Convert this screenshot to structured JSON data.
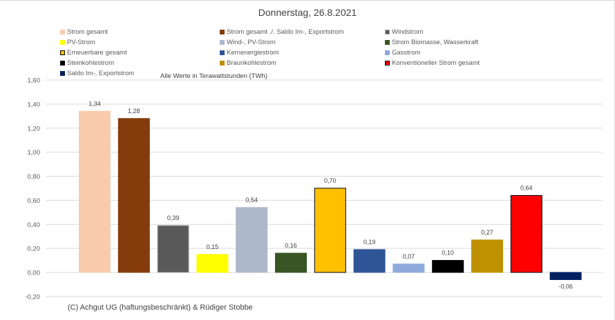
{
  "chart_data": {
    "type": "bar",
    "title": "Donnerstag, 26.8.2021",
    "subtitle": "Alle Werte in Terawattstunden (TWh)",
    "footer": "(C) Achgut UG (haftungsbeschränkt) & Rüdiger Stobbe",
    "ylim": [
      -0.2,
      1.6
    ],
    "yticks": [
      "1,60",
      "1,40",
      "1,20",
      "1,00",
      "0,80",
      "0,60",
      "0,40",
      "0,20",
      "0,00",
      "-0,20"
    ],
    "ytick_values": [
      1.6,
      1.4,
      1.2,
      1.0,
      0.8,
      0.6,
      0.4,
      0.2,
      0.0,
      -0.2
    ],
    "grid": true,
    "legend_position": "top",
    "series": [
      {
        "name": "Strom gesamt",
        "value": 1.34,
        "label": "1,34",
        "color": "#f8cbad",
        "border": "#f8cbad"
      },
      {
        "name": "Strom gesamt ./. Saldo Im-, Exportstrom",
        "value": 1.28,
        "label": "1,28",
        "color": "#843c0c",
        "border": "#843c0c"
      },
      {
        "name": "Windstrom",
        "value": 0.39,
        "label": "0,39",
        "color": "#595959",
        "border": "#a6a6a6"
      },
      {
        "name": "PV-Strom",
        "value": 0.15,
        "label": "0,15",
        "color": "#ffff00",
        "border": "#ffff00"
      },
      {
        "name": "Wind-, PV-Strom",
        "value": 0.54,
        "label": "0,54",
        "color": "#adb9ca",
        "border": "#adb9ca"
      },
      {
        "name": "Strom Biomasse, Wasserkraft",
        "value": 0.16,
        "label": "0,16",
        "color": "#375623",
        "border": "#375623"
      },
      {
        "name": "Erneuerbare gesamt",
        "value": 0.7,
        "label": "0,70",
        "color": "#ffc000",
        "border": "#000000"
      },
      {
        "name": "Kernenergiestrom",
        "value": 0.19,
        "label": "0,19",
        "color": "#2f5597",
        "border": "#2f5597"
      },
      {
        "name": "Gasstrom",
        "value": 0.07,
        "label": "0,07",
        "color": "#8faadc",
        "border": "#8faadc"
      },
      {
        "name": "Steinkohlestrom",
        "value": 0.1,
        "label": "0,10",
        "color": "#000000",
        "border": "#000000"
      },
      {
        "name": "Braunkohlestrom",
        "value": 0.27,
        "label": "0,27",
        "color": "#bf9000",
        "border": "#bf9000"
      },
      {
        "name": "Konventioneller Strom gesamt",
        "value": 0.64,
        "label": "0,64",
        "color": "#ff0000",
        "border": "#000000"
      },
      {
        "name": "Saldo Im-, Exportstrom",
        "value": -0.06,
        "label": "-0,06",
        "color": "#002060",
        "border": "#002060"
      }
    ]
  }
}
